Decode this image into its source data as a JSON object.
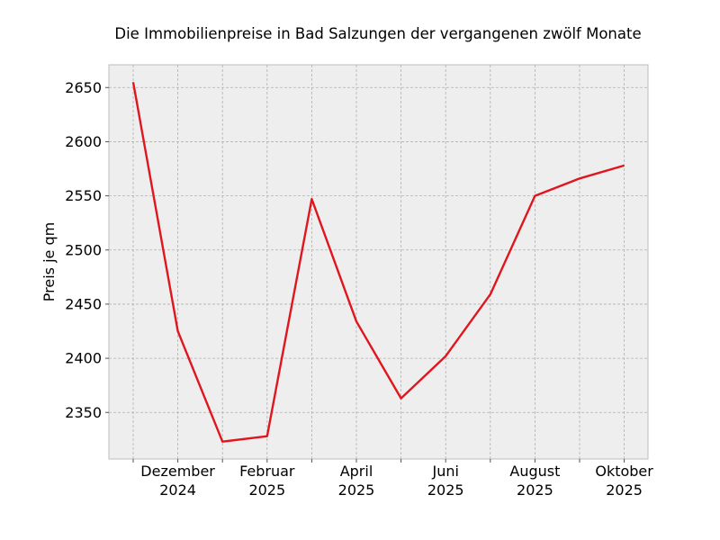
{
  "chart_data": {
    "type": "line",
    "title": "Die Immobilienpreise in Bad Salzungen der vergangenen zwölf Monate",
    "xlabel": "",
    "ylabel": "Preis je qm",
    "x": [
      "2024-11",
      "2024-12",
      "2025-01",
      "2025-02",
      "2025-03",
      "2025-04",
      "2025-05",
      "2025-06",
      "2025-07",
      "2025-08",
      "2025-09",
      "2025-10"
    ],
    "series": [
      {
        "values": [
          2655,
          2425,
          2323,
          2328,
          2547,
          2434,
          2363,
          2402,
          2459,
          2550,
          2566,
          2578
        ]
      }
    ],
    "xticks": [
      {
        "x": "2024-12",
        "label": [
          "Dezember",
          "2024"
        ]
      },
      {
        "x": "2025-02",
        "label": [
          "Februar",
          "2025"
        ]
      },
      {
        "x": "2025-04",
        "label": [
          "April",
          "2025"
        ]
      },
      {
        "x": "2025-06",
        "label": [
          "Juni",
          "2025"
        ]
      },
      {
        "x": "2025-08",
        "label": [
          "August",
          "2025"
        ]
      },
      {
        "x": "2025-10",
        "label": [
          "Oktober",
          "2025"
        ]
      }
    ],
    "yticks": [
      2350,
      2400,
      2450,
      2500,
      2550,
      2600,
      2650
    ],
    "ylim": [
      2307,
      2671
    ],
    "grid": true,
    "colors": {
      "line": "#e0161e",
      "background": "#eeeeee"
    }
  }
}
